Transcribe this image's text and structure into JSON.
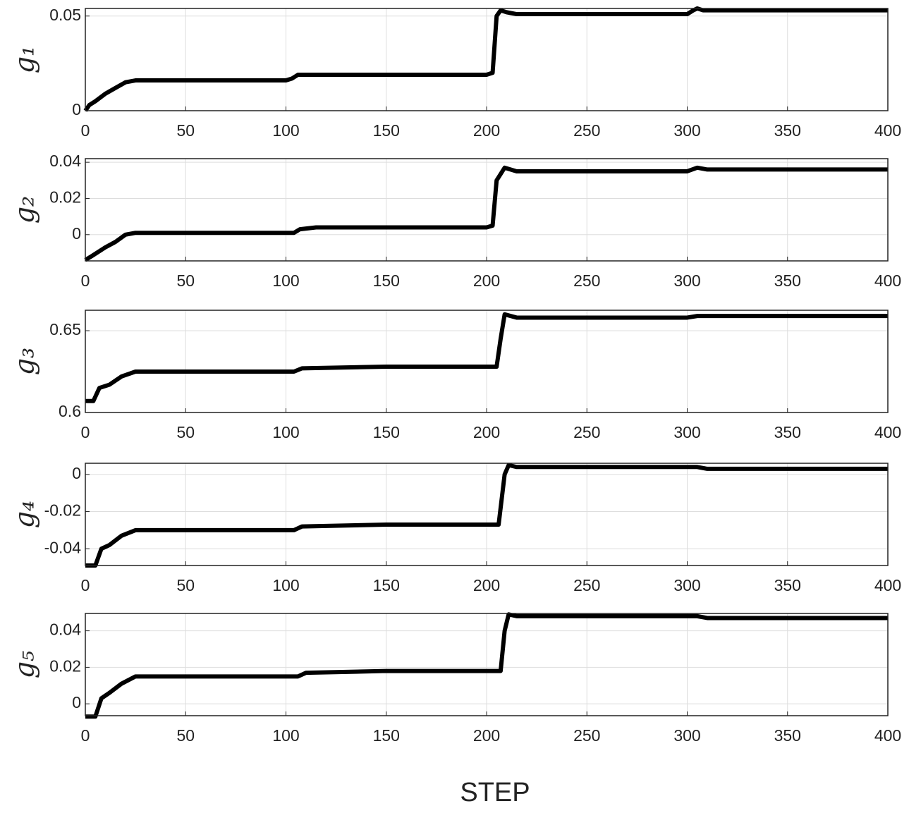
{
  "chart_data": [
    {
      "type": "line",
      "ylabel": "g₁",
      "xlim": [
        0,
        400
      ],
      "xticks": [
        0,
        50,
        100,
        150,
        200,
        250,
        300,
        350,
        400
      ],
      "ylim": [
        0,
        0.054
      ],
      "yticks": [
        0,
        0.05
      ],
      "grid": true,
      "x": [
        0,
        2,
        5,
        10,
        15,
        20,
        25,
        100,
        103,
        106,
        110,
        200,
        203,
        205,
        207,
        210,
        215,
        220,
        300,
        303,
        305,
        308,
        400
      ],
      "values": [
        0,
        0.003,
        0.005,
        0.009,
        0.012,
        0.015,
        0.016,
        0.016,
        0.017,
        0.019,
        0.019,
        0.019,
        0.02,
        0.05,
        0.053,
        0.052,
        0.051,
        0.051,
        0.051,
        0.053,
        0.054,
        0.053,
        0.053
      ],
      "color": "#000000"
    },
    {
      "type": "line",
      "ylabel": "g₂",
      "xlim": [
        0,
        400
      ],
      "xticks": [
        0,
        50,
        100,
        150,
        200,
        250,
        300,
        350,
        400
      ],
      "ylim": [
        -0.0145,
        0.042
      ],
      "yticks": [
        0,
        0.02,
        0.04
      ],
      "grid": true,
      "x": [
        0,
        3,
        10,
        15,
        20,
        25,
        104,
        107,
        115,
        200,
        203,
        205,
        209,
        215,
        300,
        305,
        310,
        400
      ],
      "values": [
        -0.014,
        -0.012,
        -0.007,
        -0.004,
        0,
        0.001,
        0.001,
        0.003,
        0.004,
        0.004,
        0.005,
        0.03,
        0.037,
        0.035,
        0.035,
        0.037,
        0.036,
        0.036
      ],
      "color": "#000000"
    },
    {
      "type": "line",
      "ylabel": "g₃",
      "xlim": [
        0,
        400
      ],
      "xticks": [
        0,
        50,
        100,
        150,
        200,
        250,
        300,
        350,
        400
      ],
      "ylim": [
        0.6,
        0.6625
      ],
      "yticks": [
        0.6,
        0.65
      ],
      "grid": true,
      "x": [
        0,
        4,
        7,
        12,
        18,
        25,
        104,
        108,
        150,
        205,
        207,
        209,
        215,
        300,
        305,
        400
      ],
      "values": [
        0.607,
        0.607,
        0.615,
        0.617,
        0.622,
        0.625,
        0.625,
        0.627,
        0.628,
        0.628,
        0.645,
        0.66,
        0.658,
        0.658,
        0.659,
        0.659
      ],
      "color": "#000000"
    },
    {
      "type": "line",
      "ylabel": "g₄",
      "xlim": [
        0,
        400
      ],
      "xticks": [
        0,
        50,
        100,
        150,
        200,
        250,
        300,
        350,
        400
      ],
      "ylim": [
        -0.049,
        0.006
      ],
      "yticks": [
        -0.04,
        -0.02,
        0
      ],
      "grid": true,
      "x": [
        0,
        5,
        8,
        12,
        18,
        25,
        104,
        108,
        150,
        206,
        209,
        211,
        215,
        305,
        310,
        400
      ],
      "values": [
        -0.049,
        -0.049,
        -0.04,
        -0.038,
        -0.033,
        -0.03,
        -0.03,
        -0.028,
        -0.027,
        -0.027,
        0,
        0.005,
        0.004,
        0.004,
        0.003,
        0.003
      ],
      "color": "#000000"
    },
    {
      "type": "line",
      "ylabel": "g₅",
      "xlabel": "STEP",
      "xlim": [
        0,
        400
      ],
      "xticks": [
        0,
        50,
        100,
        150,
        200,
        250,
        300,
        350,
        400
      ],
      "ylim": [
        -0.0065,
        0.0495
      ],
      "yticks": [
        0,
        0.02,
        0.04
      ],
      "grid": true,
      "x": [
        0,
        5,
        8,
        12,
        18,
        25,
        106,
        110,
        150,
        207,
        209,
        211,
        215,
        305,
        310,
        400
      ],
      "values": [
        -0.007,
        -0.007,
        0.003,
        0.006,
        0.011,
        0.015,
        0.015,
        0.017,
        0.018,
        0.018,
        0.04,
        0.049,
        0.048,
        0.048,
        0.047,
        0.047
      ],
      "color": "#000000"
    }
  ]
}
